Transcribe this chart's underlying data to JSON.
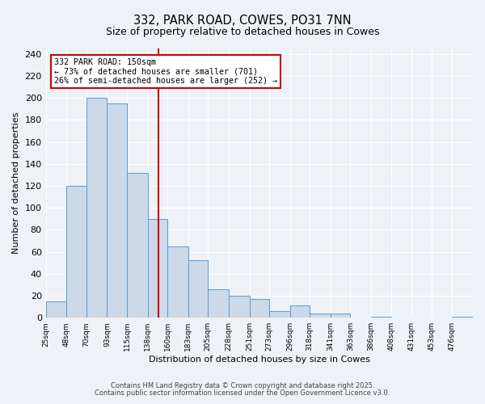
{
  "title": "332, PARK ROAD, COWES, PO31 7NN",
  "subtitle": "Size of property relative to detached houses in Cowes",
  "xlabel": "Distribution of detached houses by size in Cowes",
  "ylabel": "Number of detached properties",
  "bin_edges": [
    25,
    48,
    70,
    93,
    115,
    138,
    160,
    183,
    205,
    228,
    251,
    273,
    296,
    318,
    341,
    363,
    386,
    408,
    431,
    453,
    476,
    499
  ],
  "bar_heights": [
    15,
    120,
    200,
    195,
    132,
    90,
    65,
    52,
    26,
    20,
    17,
    6,
    11,
    4,
    4,
    0,
    1,
    0,
    0,
    0,
    1
  ],
  "bar_color": "#ccd9e8",
  "bar_edge_color": "#5b9bd5",
  "property_size": 150,
  "vline_color": "#cc0000",
  "annotation_line1": "332 PARK ROAD: 150sqm",
  "annotation_line2": "← 73% of detached houses are smaller (701)",
  "annotation_line3": "26% of semi-detached houses are larger (252) →",
  "annotation_box_color": "#cc0000",
  "background_color": "#eef2f7",
  "grid_color": "#ffffff",
  "footer_line1": "Contains HM Land Registry data © Crown copyright and database right 2025.",
  "footer_line2": "Contains public sector information licensed under the Open Government Licence v3.0.",
  "ylim": [
    0,
    245
  ],
  "yticks": [
    0,
    20,
    40,
    60,
    80,
    100,
    120,
    140,
    160,
    180,
    200,
    220,
    240
  ],
  "title_fontsize": 10.5,
  "subtitle_fontsize": 9,
  "tick_label_fontsize": 6.5,
  "ytick_fontsize": 8,
  "axis_label_fontsize": 8,
  "footer_fontsize": 6
}
